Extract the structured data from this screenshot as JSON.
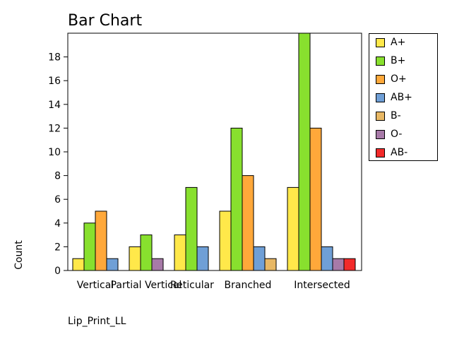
{
  "chart_data": {
    "type": "bar",
    "title": "Bar Chart",
    "xlabel": "Lip_Print_LL",
    "ylabel": "Count",
    "ylim": [
      0,
      20
    ],
    "yticks": [
      0,
      2,
      4,
      6,
      8,
      10,
      12,
      14,
      16,
      18
    ],
    "grid": false,
    "legend_position": "right",
    "categories": [
      "Vertical",
      "Partial Vertical",
      "Reticular",
      "Branched",
      "Intersected"
    ],
    "series": [
      {
        "name": "A+",
        "color": "#ffe84a",
        "values": [
          1,
          2,
          3,
          5,
          7
        ]
      },
      {
        "name": "B+",
        "color": "#88e02e",
        "values": [
          4,
          3,
          7,
          12,
          20
        ]
      },
      {
        "name": "O+",
        "color": "#ffa83a",
        "values": [
          5,
          0,
          0,
          8,
          12
        ]
      },
      {
        "name": "AB+",
        "color": "#6f9fd6",
        "values": [
          1,
          0,
          2,
          2,
          2
        ]
      },
      {
        "name": "B-",
        "color": "#e8b865",
        "values": [
          0,
          0,
          0,
          1,
          0
        ]
      },
      {
        "name": "O-",
        "color": "#a77aa8",
        "values": [
          0,
          1,
          0,
          0,
          1
        ]
      },
      {
        "name": "AB-",
        "color": "#f22a2a",
        "values": [
          0,
          0,
          0,
          0,
          1
        ]
      }
    ]
  }
}
